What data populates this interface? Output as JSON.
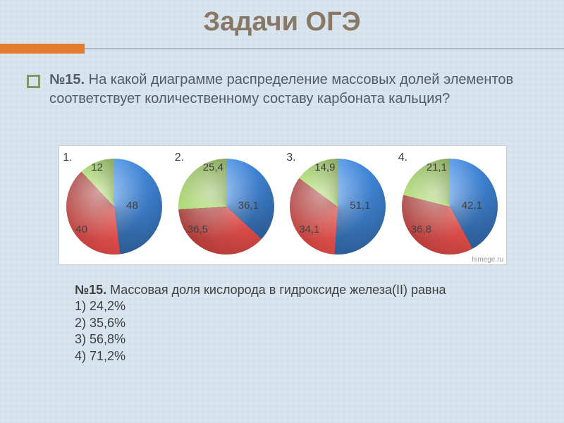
{
  "title": "Задачи ОГЭ",
  "accent": {
    "orange": "#e37a2e",
    "line": "#aab7c2",
    "bullet_border": "#7d9a66"
  },
  "background": "#d7e3ed",
  "question1": {
    "label": "№15.",
    "text": "На какой диаграмме распределение массовых долей элементов соответствует количественному составу карбоната кальция?"
  },
  "pie_colors": {
    "blue": "#3d7ecc",
    "red": "#c74440",
    "green": "#8cbb52"
  },
  "charts": [
    {
      "num": "1.",
      "blue": 48,
      "red": 40,
      "green": 12,
      "blue_l": "48",
      "red_l": "40",
      "green_l": "12"
    },
    {
      "num": "2.",
      "blue": 36.1,
      "red": 36.5,
      "green": 25.4,
      "blue_l": "36,1",
      "red_l": "36,5",
      "green_l": "25,4"
    },
    {
      "num": "3.",
      "blue": 51.1,
      "red": 34.1,
      "green": 14.9,
      "blue_l": "51,1",
      "red_l": "34,1",
      "green_l": "14,9"
    },
    {
      "num": "4.",
      "blue": 42.1,
      "red": 36.8,
      "green": 21.1,
      "blue_l": "42,1",
      "red_l": "36,8",
      "green_l": "21,1"
    }
  ],
  "watermark": "himege.ru",
  "question2": {
    "label": "№15.",
    "text": "Массовая доля кислорода в гидроксиде железа(II)    равна",
    "options": [
      "1) 24,2%",
      "2) 35,6%",
      "3) 56,8%",
      "4) 71,2%"
    ]
  }
}
